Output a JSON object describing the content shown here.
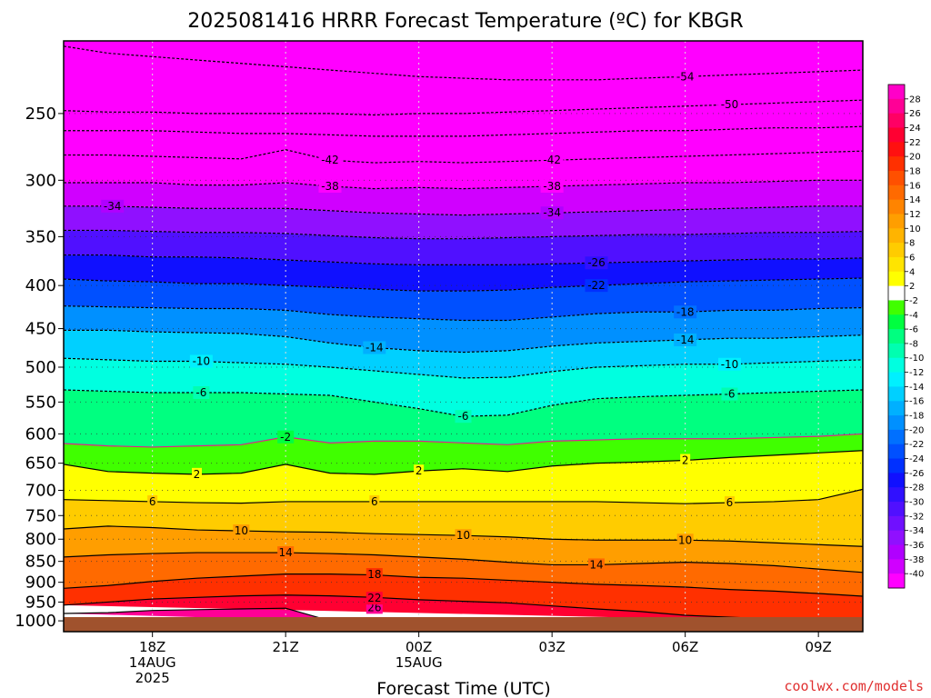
{
  "chart_data": {
    "type": "heatmap",
    "title": "2025081416 HRRR Forecast Temperature (ºC) for KBGR",
    "xlabel": "Forecast Time (UTC)",
    "ylabel": "",
    "credit": "coolwx.com/models",
    "y_scale": "log",
    "y_reversed": true,
    "xlim": [
      16,
      34
    ],
    "ylim": [
      1030,
      205
    ],
    "grid": true,
    "x_ticks": [
      {
        "x": 18,
        "line1": "18Z",
        "line2": "14AUG",
        "line3": "2025"
      },
      {
        "x": 21,
        "line1": "21Z",
        "line2": "",
        "line3": ""
      },
      {
        "x": 24,
        "line1": "00Z",
        "line2": "15AUG",
        "line3": ""
      },
      {
        "x": 27,
        "line1": "03Z",
        "line2": "",
        "line3": ""
      },
      {
        "x": 30,
        "line1": "06Z",
        "line2": "",
        "line3": ""
      },
      {
        "x": 33,
        "line1": "09Z",
        "line2": "",
        "line3": ""
      }
    ],
    "y_ticks": [
      250,
      300,
      350,
      400,
      450,
      500,
      550,
      600,
      650,
      700,
      750,
      800,
      850,
      900,
      950,
      1000
    ],
    "colorbar": {
      "labels": [
        28,
        26,
        24,
        22,
        20,
        18,
        16,
        14,
        12,
        10,
        8,
        6,
        4,
        2,
        -2,
        -4,
        -6,
        -8,
        -10,
        -12,
        -14,
        -16,
        -18,
        -20,
        -22,
        -24,
        -26,
        -28,
        -30,
        -32,
        -34,
        -36,
        -38,
        -40
      ],
      "colors": [
        "#ff00c8",
        "#ff0096",
        "#ff0064",
        "#ff0032",
        "#ff1010",
        "#ff3000",
        "#ff5000",
        "#ff6a00",
        "#ff8400",
        "#ff9e00",
        "#ffb400",
        "#ffcc00",
        "#ffe400",
        "#ffff00",
        "#ffffff",
        "#40ff00",
        "#00ff40",
        "#00ff80",
        "#00ffb0",
        "#00ffe0",
        "#00f0ff",
        "#00d0ff",
        "#00b0ff",
        "#0090ff",
        "#0070ff",
        "#0050ff",
        "#0030ff",
        "#1010ff",
        "#3010ff",
        "#5010ff",
        "#7010ff",
        "#9010ff",
        "#b000ff",
        "#d000ff",
        "#ff00ff"
      ]
    },
    "times": [
      16,
      17,
      18,
      19,
      20,
      21,
      22,
      23,
      24,
      25,
      26,
      27,
      28,
      29,
      30,
      31,
      32,
      33,
      34
    ],
    "isotherms": [
      {
        "t": 26,
        "p": [
          980,
          978,
          972,
          970,
          968,
          966,
          1000
        ]
      },
      {
        "t": 22,
        "p": [
          958,
          950,
          942,
          938,
          934,
          932,
          934,
          938,
          944,
          948,
          952,
          960,
          968,
          975,
          985,
          990,
          995,
          1000,
          1005
        ]
      },
      {
        "t": 18,
        "p": [
          915,
          908,
          898,
          890,
          885,
          880,
          880,
          882,
          888,
          890,
          895,
          900,
          905,
          908,
          912,
          918,
          922,
          928,
          935
        ]
      },
      {
        "t": 14,
        "p": [
          840,
          835,
          832,
          830,
          830,
          830,
          832,
          835,
          840,
          845,
          852,
          858,
          858,
          855,
          852,
          855,
          860,
          868,
          876
        ]
      },
      {
        "t": 10,
        "p": [
          778,
          772,
          775,
          780,
          782,
          784,
          785,
          788,
          790,
          792,
          795,
          800,
          802,
          802,
          802,
          804,
          808,
          812,
          816
        ]
      },
      {
        "t": 6,
        "p": [
          718,
          720,
          722,
          724,
          725,
          722,
          722,
          722,
          722,
          722,
          722,
          722,
          722,
          724,
          726,
          724,
          722,
          718,
          698
        ]
      },
      {
        "t": 2,
        "p": [
          652,
          665,
          668,
          670,
          668,
          652,
          668,
          670,
          664,
          660,
          665,
          655,
          650,
          648,
          645,
          640,
          636,
          632,
          628
        ]
      },
      {
        "t": -2,
        "p": [
          616,
          620,
          622,
          620,
          618,
          605,
          615,
          612,
          612,
          615,
          618,
          612,
          610,
          608,
          608,
          608,
          606,
          604,
          600
        ]
      },
      {
        "t": -6,
        "p": [
          532,
          534,
          536,
          536,
          536,
          538,
          540,
          550,
          560,
          572,
          570,
          555,
          545,
          542,
          540,
          538,
          536,
          534,
          532
        ]
      },
      {
        "t": -10,
        "p": [
          488,
          490,
          492,
          492,
          494,
          496,
          500,
          505,
          510,
          515,
          514,
          506,
          500,
          498,
          496,
          496,
          494,
          492,
          490
        ]
      },
      {
        "t": -14,
        "p": [
          452,
          452,
          454,
          455,
          456,
          460,
          468,
          474,
          478,
          480,
          478,
          472,
          468,
          466,
          464,
          462,
          462,
          460,
          458
        ]
      },
      {
        "t": -18,
        "p": [
          423,
          424,
          425,
          426,
          426,
          428,
          433,
          436,
          438,
          440,
          440,
          436,
          432,
          430,
          430,
          428,
          428,
          426,
          425
        ]
      },
      {
        "t": -22,
        "p": [
          393,
          395,
          396,
          398,
          398,
          400,
          402,
          404,
          406,
          406,
          405,
          402,
          400,
          398,
          396,
          395,
          394,
          393,
          392
        ]
      },
      {
        "t": -26,
        "p": [
          368,
          368,
          370,
          370,
          371,
          373,
          375,
          377,
          378,
          378,
          378,
          377,
          376,
          375,
          374,
          373,
          372,
          372,
          371
        ]
      },
      {
        "t": -30,
        "p": [
          344,
          344,
          345,
          346,
          346,
          347,
          349,
          351,
          352,
          352,
          351,
          350,
          349,
          348,
          348,
          347,
          346,
          346,
          345
        ]
      },
      {
        "t": -34,
        "p": [
          322,
          322,
          323,
          324,
          324,
          324,
          326,
          328,
          329,
          330,
          329,
          328,
          327,
          326,
          325,
          324,
          323,
          322,
          322
        ]
      },
      {
        "t": -38,
        "p": [
          302,
          302,
          302,
          304,
          304,
          302,
          305,
          307,
          306,
          307,
          306,
          305,
          304,
          303,
          302,
          302,
          301,
          300,
          300
        ]
      },
      {
        "t": -42,
        "p": [
          280,
          280,
          281,
          282,
          283,
          276,
          284,
          286,
          285,
          286,
          285,
          284,
          283,
          282,
          281,
          280,
          279,
          278,
          277
        ]
      },
      {
        "t": -46,
        "p": [
          262,
          262,
          262,
          263,
          264,
          264,
          265,
          266,
          266,
          266,
          265,
          264,
          263,
          262,
          262,
          261,
          260,
          260,
          259
        ]
      },
      {
        "t": -50,
        "p": [
          248,
          249,
          249,
          250,
          250,
          250,
          250,
          251,
          250,
          250,
          249,
          248,
          247,
          246,
          245,
          244,
          243,
          242,
          241
        ]
      },
      {
        "t": -54,
        "p": [
          208,
          212,
          214,
          216,
          218,
          220,
          222,
          224,
          226,
          227,
          228,
          228,
          228,
          227,
          226,
          225,
          224,
          223,
          222
        ]
      }
    ],
    "contour_labels": [
      {
        "t": 26,
        "x": 23.0,
        "p": 964
      },
      {
        "t": 22,
        "x": 23.0,
        "p": 940
      },
      {
        "t": 18,
        "x": 23.0,
        "p": 881
      },
      {
        "t": 14,
        "x": 21.0,
        "p": 830
      },
      {
        "t": 14,
        "x": 28.0,
        "p": 858
      },
      {
        "t": 10,
        "x": 20.0,
        "p": 782
      },
      {
        "t": 10,
        "x": 25.0,
        "p": 792
      },
      {
        "t": 10,
        "x": 30.0,
        "p": 802
      },
      {
        "t": 6,
        "x": 18.0,
        "p": 722
      },
      {
        "t": 6,
        "x": 23.0,
        "p": 722
      },
      {
        "t": 6,
        "x": 31.0,
        "p": 724
      },
      {
        "t": 2,
        "x": 19.0,
        "p": 670
      },
      {
        "t": 2,
        "x": 24.0,
        "p": 664
      },
      {
        "t": 2,
        "x": 30.0,
        "p": 645
      },
      {
        "t": -2,
        "x": 21.0,
        "p": 605
      },
      {
        "t": -6,
        "x": 19.1,
        "p": 536
      },
      {
        "t": -6,
        "x": 25.0,
        "p": 572
      },
      {
        "t": -6,
        "x": 31.0,
        "p": 538
      },
      {
        "t": -10,
        "x": 19.1,
        "p": 492
      },
      {
        "t": -10,
        "x": 31.0,
        "p": 496
      },
      {
        "t": -14,
        "x": 23.0,
        "p": 474
      },
      {
        "t": -14,
        "x": 30.0,
        "p": 464
      },
      {
        "t": -18,
        "x": 30.0,
        "p": 430
      },
      {
        "t": -22,
        "x": 28.0,
        "p": 400
      },
      {
        "t": -26,
        "x": 28.0,
        "p": 376
      },
      {
        "t": -34,
        "x": 17.1,
        "p": 322
      },
      {
        "t": -34,
        "x": 27.0,
        "p": 328
      },
      {
        "t": -38,
        "x": 22.0,
        "p": 305
      },
      {
        "t": -38,
        "x": 27.0,
        "p": 305
      },
      {
        "t": -42,
        "x": 22.0,
        "p": 284
      },
      {
        "t": -42,
        "x": 27.0,
        "p": 284
      },
      {
        "t": -50,
        "x": 31.0,
        "p": 244
      },
      {
        "t": -54,
        "x": 30.0,
        "p": 226
      }
    ]
  }
}
